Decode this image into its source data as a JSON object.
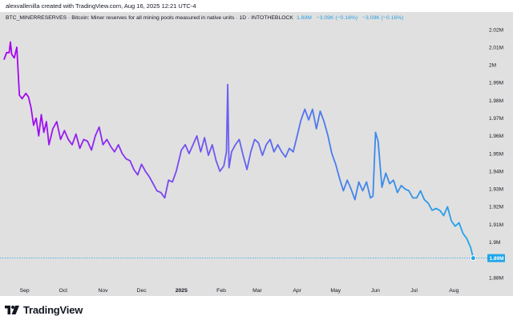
{
  "header": {
    "text": "alexvallenilla created with TradingView.com, Aug 16, 2025 12:21 UTC-4"
  },
  "legend": {
    "symbol": "BTC_MINERRESERVES · Bitcoin: Miner reserves for all mining pools measured in native units · 1D · INTOTHEBLOCK",
    "last": "1.89M",
    "change1": "−3.09K (−0.16%)",
    "change2": "−3.09K (−0.16%)"
  },
  "footer": {
    "brand": "TradingView",
    "logo_icon": "tradingview-logo-icon"
  },
  "colors": {
    "panel": "#e0e0e0",
    "line_start": "#a800f0",
    "line_mid": "#6d5af0",
    "line_end": "#1fa6e8",
    "price_label": "#1fa6e8"
  },
  "chart_data": {
    "type": "line",
    "title": "",
    "xlabel": "",
    "ylabel": "",
    "ylim": [
      1.88,
      2.02
    ],
    "y_ticks": [
      "2.02M",
      "2.01M",
      "2M",
      "1.99M",
      "1.98M",
      "1.97M",
      "1.96M",
      "1.95M",
      "1.94M",
      "1.93M",
      "1.92M",
      "1.91M",
      "1.9M",
      "1.89M",
      "1.88M"
    ],
    "y_tick_values": [
      2.02,
      2.01,
      2.0,
      1.99,
      1.98,
      1.97,
      1.96,
      1.95,
      1.94,
      1.93,
      1.92,
      1.91,
      1.9,
      1.89,
      1.88
    ],
    "x_ticks": [
      {
        "label": "Sep",
        "date": "2024-09-01"
      },
      {
        "label": "Oct",
        "date": "2024-10-01"
      },
      {
        "label": "Nov",
        "date": "2024-11-01"
      },
      {
        "label": "Dec",
        "date": "2024-12-01"
      },
      {
        "label": "2025",
        "date": "2025-01-01"
      },
      {
        "label": "Feb",
        "date": "2025-02-01"
      },
      {
        "label": "Mar",
        "date": "2025-03-01"
      },
      {
        "label": "Apr",
        "date": "2025-04-01"
      },
      {
        "label": "May",
        "date": "2025-05-01"
      },
      {
        "label": "Jun",
        "date": "2025-06-01"
      },
      {
        "label": "Jul",
        "date": "2025-07-01"
      },
      {
        "label": "Aug",
        "date": "2025-08-01"
      }
    ],
    "last_value_label": "1.89M",
    "series": [
      {
        "x": [
          "2024-08-16",
          "2024-08-18",
          "2024-08-20",
          "2024-08-21",
          "2024-08-22",
          "2024-08-24",
          "2024-08-26",
          "2024-08-28",
          "2024-08-30",
          "2024-09-02",
          "2024-09-04",
          "2024-09-06",
          "2024-09-08",
          "2024-09-10",
          "2024-09-12",
          "2024-09-14",
          "2024-09-16",
          "2024-09-18",
          "2024-09-20",
          "2024-09-23",
          "2024-09-26",
          "2024-09-29",
          "2024-10-02",
          "2024-10-05",
          "2024-10-08",
          "2024-10-11",
          "2024-10-14",
          "2024-10-17",
          "2024-10-20",
          "2024-10-23",
          "2024-10-26",
          "2024-10-29",
          "2024-11-01",
          "2024-11-04",
          "2024-11-07",
          "2024-11-10",
          "2024-11-13",
          "2024-11-16",
          "2024-11-19",
          "2024-11-22",
          "2024-11-25",
          "2024-11-28",
          "2024-12-01",
          "2024-12-04",
          "2024-12-07",
          "2024-12-10",
          "2024-12-13",
          "2024-12-16",
          "2024-12-19",
          "2024-12-22",
          "2024-12-25",
          "2024-12-28",
          "2025-01-01",
          "2025-01-04",
          "2025-01-07",
          "2025-01-10",
          "2025-01-13",
          "2025-01-16",
          "2025-01-19",
          "2025-01-22",
          "2025-01-25",
          "2025-01-28",
          "2025-01-31",
          "2025-02-03",
          "2025-02-05",
          "2025-02-06",
          "2025-02-07",
          "2025-02-09",
          "2025-02-12",
          "2025-02-15",
          "2025-02-18",
          "2025-02-21",
          "2025-02-24",
          "2025-02-27",
          "2025-03-02",
          "2025-03-05",
          "2025-03-08",
          "2025-03-11",
          "2025-03-14",
          "2025-03-17",
          "2025-03-20",
          "2025-03-23",
          "2025-03-26",
          "2025-03-29",
          "2025-04-01",
          "2025-04-04",
          "2025-04-07",
          "2025-04-10",
          "2025-04-13",
          "2025-04-16",
          "2025-04-19",
          "2025-04-22",
          "2025-04-25",
          "2025-04-28",
          "2025-05-01",
          "2025-05-04",
          "2025-05-07",
          "2025-05-10",
          "2025-05-13",
          "2025-05-16",
          "2025-05-19",
          "2025-05-22",
          "2025-05-25",
          "2025-05-28",
          "2025-05-30",
          "2025-06-01",
          "2025-06-03",
          "2025-06-06",
          "2025-06-09",
          "2025-06-12",
          "2025-06-15",
          "2025-06-18",
          "2025-06-21",
          "2025-06-24",
          "2025-06-27",
          "2025-06-30",
          "2025-07-03",
          "2025-07-06",
          "2025-07-09",
          "2025-07-12",
          "2025-07-15",
          "2025-07-18",
          "2025-07-21",
          "2025-07-24",
          "2025-07-27",
          "2025-07-30",
          "2025-08-02",
          "2025-08-05",
          "2025-08-08",
          "2025-08-11",
          "2025-08-14",
          "2025-08-16"
        ],
        "y": [
          2.003,
          2.007,
          2.007,
          2.013,
          2.006,
          2.004,
          2.01,
          1.983,
          1.981,
          1.984,
          1.982,
          1.976,
          1.966,
          1.97,
          1.96,
          1.972,
          1.962,
          1.968,
          1.955,
          1.964,
          1.968,
          1.958,
          1.963,
          1.958,
          1.955,
          1.961,
          1.953,
          1.958,
          1.957,
          1.952,
          1.96,
          1.965,
          1.955,
          1.958,
          1.954,
          1.951,
          1.955,
          1.95,
          1.947,
          1.946,
          1.941,
          1.938,
          1.944,
          1.94,
          1.937,
          1.933,
          1.929,
          1.928,
          1.925,
          1.935,
          1.934,
          1.94,
          1.952,
          1.955,
          1.95,
          1.955,
          1.96,
          1.951,
          1.959,
          1.949,
          1.955,
          1.946,
          1.94,
          1.943,
          1.951,
          1.989,
          1.942,
          1.951,
          1.955,
          1.958,
          1.949,
          1.941,
          1.951,
          1.958,
          1.956,
          1.949,
          1.955,
          1.958,
          1.951,
          1.955,
          1.951,
          1.948,
          1.953,
          1.951,
          1.96,
          1.969,
          1.975,
          1.969,
          1.975,
          1.964,
          1.974,
          1.968,
          1.96,
          1.95,
          1.944,
          1.936,
          1.929,
          1.935,
          1.93,
          1.924,
          1.934,
          1.929,
          1.934,
          1.925,
          1.926,
          1.962,
          1.957,
          1.931,
          1.939,
          1.933,
          1.935,
          1.928,
          1.932,
          1.93,
          1.929,
          1.925,
          1.925,
          1.929,
          1.924,
          1.922,
          1.918,
          1.919,
          1.918,
          1.915,
          1.92,
          1.912,
          1.909,
          1.911,
          1.905,
          1.902,
          1.897,
          1.891
        ]
      }
    ]
  }
}
